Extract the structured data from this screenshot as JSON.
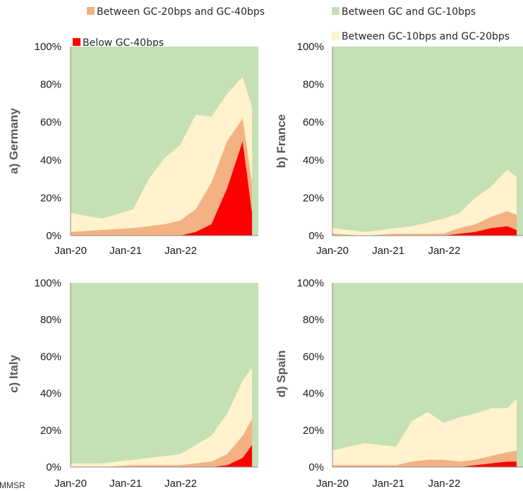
{
  "legend": [
    {
      "key": "gc_20_40",
      "label": "Between GC-20bps and GC-40bps",
      "color": "#f4b183"
    },
    {
      "key": "gc_0_10",
      "label": "Between GC and GC-10bps",
      "color": "#c5e0b4"
    },
    {
      "key": "below_40",
      "label": "Below GC-40bps",
      "color": "#ff0000"
    },
    {
      "key": "gc_10_20",
      "label": "Between GC-10bps and GC-20bps",
      "color": "#fff2cc"
    }
  ],
  "source_text": "MMSR",
  "chart_data": [
    {
      "type": "area",
      "panel_label": "a) Germany",
      "y_tick_labels": [
        "0%",
        "20%",
        "40%",
        "60%",
        "80%",
        "100%"
      ],
      "x_tick_labels": [
        "Jan-20",
        "Jan-21",
        "Jan-22"
      ],
      "ylim": [
        0,
        100
      ],
      "stacking": "100% stacked",
      "series_order": [
        "below_40",
        "gc_20_40",
        "gc_10_20",
        "gc_0_10"
      ],
      "x": [
        0.0,
        0.5,
        1.0,
        1.25,
        1.5,
        1.75,
        2.0,
        2.25,
        2.5,
        2.75,
        2.9
      ],
      "series": [
        {
          "key": "below_40",
          "values": [
            0,
            0,
            0,
            0,
            0,
            0,
            2,
            6,
            25,
            50,
            12
          ]
        },
        {
          "key": "gc_20_40",
          "values": [
            2,
            3,
            4,
            5,
            6,
            8,
            12,
            22,
            25,
            12,
            16
          ]
        },
        {
          "key": "gc_10_20",
          "values": [
            10,
            6,
            10,
            25,
            35,
            40,
            50,
            35,
            25,
            22,
            40
          ]
        },
        {
          "key": "gc_0_10",
          "values": [
            88,
            91,
            86,
            70,
            59,
            52,
            36,
            37,
            25,
            16,
            32
          ]
        }
      ]
    },
    {
      "type": "area",
      "panel_label": "b) France",
      "y_tick_labels": [
        "0%",
        "20%",
        "40%",
        "60%",
        "80%",
        "100%"
      ],
      "x_tick_labels": [
        "Jan-20",
        "Jan-21",
        "Jan-22"
      ],
      "ylim": [
        0,
        100
      ],
      "stacking": "100% stacked",
      "series_order": [
        "below_40",
        "gc_20_40",
        "gc_10_20",
        "gc_0_10"
      ],
      "x": [
        0.0,
        0.5,
        1.0,
        1.25,
        1.5,
        1.75,
        2.0,
        2.25,
        2.5,
        2.75,
        2.9
      ],
      "series": [
        {
          "key": "below_40",
          "values": [
            0,
            0,
            0,
            0,
            0,
            0,
            1,
            2,
            4,
            5,
            3
          ]
        },
        {
          "key": "gc_20_40",
          "values": [
            1,
            0,
            1,
            1,
            1,
            1,
            3,
            4,
            6,
            8,
            8
          ]
        },
        {
          "key": "gc_10_20",
          "values": [
            3,
            2,
            3,
            4,
            6,
            8,
            8,
            14,
            16,
            22,
            20
          ]
        },
        {
          "key": "gc_0_10",
          "values": [
            96,
            98,
            96,
            95,
            93,
            91,
            88,
            80,
            74,
            65,
            69
          ]
        }
      ]
    },
    {
      "type": "area",
      "panel_label": "c) Italy",
      "y_tick_labels": [
        "0%",
        "20%",
        "40%",
        "60%",
        "80%",
        "100%"
      ],
      "x_tick_labels": [
        "Jan-20",
        "Jan-21",
        "Jan-22"
      ],
      "ylim": [
        0,
        100
      ],
      "stacking": "100% stacked",
      "series_order": [
        "below_40",
        "gc_20_40",
        "gc_10_20",
        "gc_0_10"
      ],
      "x": [
        0.0,
        0.5,
        1.0,
        1.25,
        1.5,
        1.75,
        2.0,
        2.25,
        2.5,
        2.75,
        2.9
      ],
      "series": [
        {
          "key": "below_40",
          "values": [
            0,
            0,
            0,
            0,
            0,
            0,
            0,
            0,
            1,
            5,
            12
          ]
        },
        {
          "key": "gc_20_40",
          "values": [
            0,
            0,
            1,
            1,
            1,
            1,
            2,
            3,
            6,
            12,
            14
          ]
        },
        {
          "key": "gc_10_20",
          "values": [
            2,
            2,
            3,
            4,
            5,
            6,
            10,
            14,
            22,
            30,
            28
          ]
        },
        {
          "key": "gc_0_10",
          "values": [
            98,
            98,
            96,
            95,
            94,
            93,
            88,
            83,
            71,
            53,
            46
          ]
        }
      ]
    },
    {
      "type": "area",
      "panel_label": "d) Spain",
      "y_tick_labels": [
        "0%",
        "20%",
        "40%",
        "60%",
        "80%",
        "100%"
      ],
      "x_tick_labels": [
        "Jan-20",
        "Jan-21",
        "Jan-22"
      ],
      "ylim": [
        0,
        100
      ],
      "stacking": "100% stacked",
      "series_order": [
        "below_40",
        "gc_20_40",
        "gc_10_20",
        "gc_0_10"
      ],
      "x": [
        0.0,
        0.5,
        1.0,
        1.25,
        1.5,
        1.75,
        2.0,
        2.25,
        2.5,
        2.75,
        2.9
      ],
      "series": [
        {
          "key": "below_40",
          "values": [
            0,
            0,
            0,
            0,
            0,
            0,
            0,
            1,
            2,
            3,
            3
          ]
        },
        {
          "key": "gc_20_40",
          "values": [
            1,
            1,
            1,
            3,
            4,
            4,
            3,
            3,
            4,
            5,
            6
          ]
        },
        {
          "key": "gc_10_20",
          "values": [
            8,
            12,
            10,
            22,
            26,
            20,
            24,
            25,
            26,
            24,
            28
          ]
        },
        {
          "key": "gc_0_10",
          "values": [
            91,
            87,
            89,
            75,
            70,
            76,
            73,
            71,
            68,
            68,
            63
          ]
        }
      ]
    }
  ]
}
